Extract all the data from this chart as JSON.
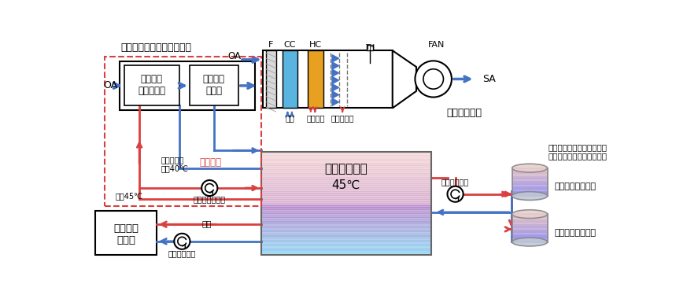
{
  "bg": "#ffffff",
  "red": "#d94040",
  "blue": "#4472c4",
  "cc_blue": "#5ab4e0",
  "hc_yellow": "#e8a020",
  "label_shinki_title": "新規のリキッドデシカント",
  "label_OA": "OA",
  "label_SA": "SA",
  "label_FAN": "FAN",
  "label_F": "F",
  "label_CC": "CC",
  "label_HC": "HC",
  "label_TH": "TH",
  "label_kuchouki": "既設の空調機",
  "label_liquid": "リキッド\nデシカント",
  "label_after": "アフター\nヒータ",
  "label_reisui": "冷水",
  "label_joukinetsu": "蒸気加熱",
  "label_kikanetsu": "気化式加湿",
  "label_onsuiso": "既設の温水層",
  "label_45c": "45℃",
  "label_shinki_setubi": "新規設備",
  "label_modori": "戻りの温水",
  "label_ondo40": "温度40℃",
  "label_ondo45": "温度45℃",
  "label_shinki_pump": "新規温水ポンプ",
  "label_kisetu_pump": "既設のポンプ",
  "label_fukusu": "複数台の\n成型機",
  "label_onsu": "温水",
  "label_cooling_text": "水槽内の温水の冷却のため\nの既設のクーリングタワー",
  "label_ct": "クーリングタワー"
}
